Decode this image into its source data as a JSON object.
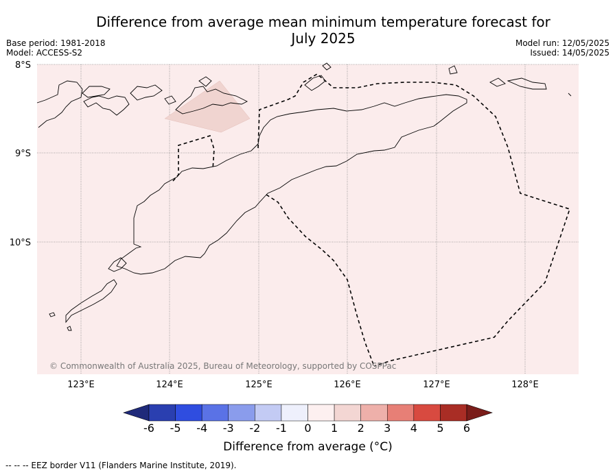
{
  "title_line1": "Difference from average mean minimum temperature forecast for",
  "title_line2": "July 2025",
  "base_period": "Base period: 1981-2018",
  "model": "Model: ACCESS-S2",
  "model_run": "Model run: 12/05/2025",
  "issued": "Issued: 14/05/2025",
  "copyright": "© Commonwealth of Australia 2025, Bureau of Meteorology, supported by COSPPac",
  "lat_labels": [
    "8°S",
    "9°S",
    "10°S"
  ],
  "lon_labels": [
    "123°E",
    "124°E",
    "125°E",
    "126°E",
    "127°E",
    "128°E"
  ],
  "colorbar": {
    "label": "Difference from average (°C)",
    "ticks": [
      "-6",
      "-5",
      "-4",
      "-3",
      "-2",
      "-1",
      "0",
      "1",
      "2",
      "3",
      "4",
      "5",
      "6"
    ],
    "colors": [
      "#1f2a7a",
      "#2a3fb0",
      "#2f4de0",
      "#5a72e6",
      "#8a9cec",
      "#c3cbf4",
      "#eef0fc",
      "#fdf0f0",
      "#f3d6d3",
      "#eeb0aa",
      "#e77f76",
      "#d84a40",
      "#a92d25",
      "#7a1d1a"
    ]
  },
  "background_anomaly_color": "#fbecec",
  "patch_color": "#f0d4d0",
  "footnote": "-- -- -- EEZ border V11 (Flanders Marine Institute, 2019)."
}
